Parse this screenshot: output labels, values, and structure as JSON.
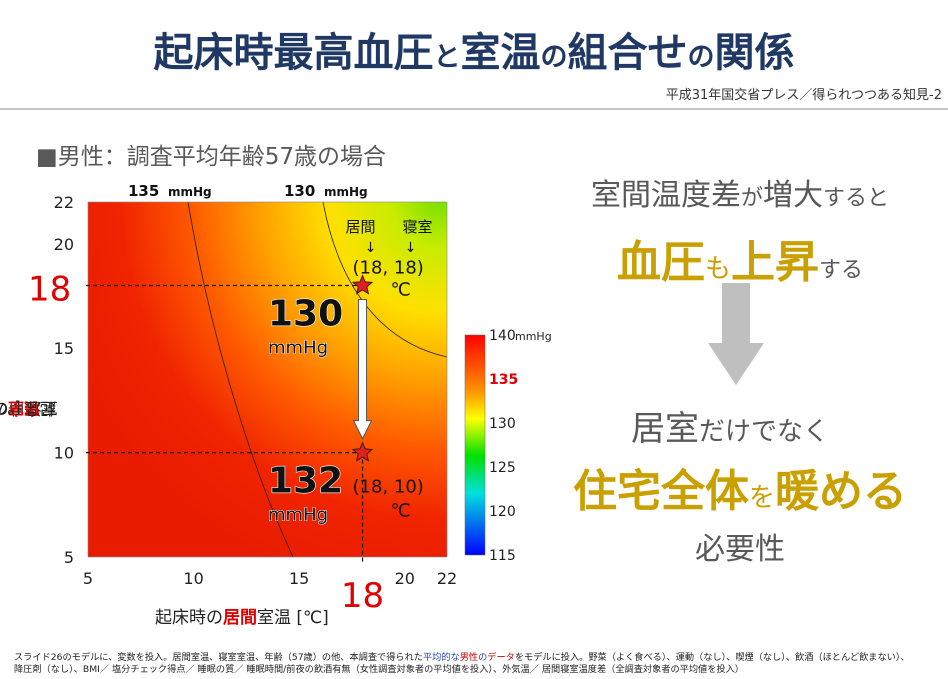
{
  "title": {
    "part1": "起床時最高血圧",
    "part2": "と",
    "part3": "室温",
    "part4": "の",
    "part5": "組合せ",
    "part6": "の",
    "part7": "関係"
  },
  "source": "平成31年国交省プレス／得られつつある知見-2",
  "subtitle": "■男性：調査平均年齢57歳の場合",
  "chart_data": {
    "type": "heatmap",
    "x_range": [
      5,
      22
    ],
    "y_range": [
      5,
      22
    ],
    "x_ticks": [
      "5",
      "10",
      "15",
      "20",
      "22"
    ],
    "y_ticks": [
      "5",
      "10",
      "15",
      "20",
      "22"
    ],
    "xlabel": {
      "prefix": "起床時の",
      "highlight": "居間",
      "suffix": "室温 [℃]"
    },
    "ylabel": {
      "prefix": "起床時の",
      "highlight": "寝室",
      "suffix": "室温 [℃]"
    },
    "colorbar": {
      "min": 115,
      "max": 140,
      "ticks": [
        "140",
        "135",
        "130",
        "125",
        "120",
        "115"
      ],
      "unit": "mmHg",
      "highlight_tick": "135",
      "highlight_color": "#e00000"
    },
    "contours": [
      {
        "label": "135",
        "unit": "mmHg"
      },
      {
        "label": "130",
        "unit": "mmHg"
      }
    ],
    "points": [
      {
        "x": 18,
        "y": 18,
        "value": "130",
        "unit": "mmHg",
        "coords": "(18, 18)",
        "deg": "℃"
      },
      {
        "x": 18,
        "y": 10,
        "value": "132",
        "unit": "mmHg",
        "coords": "(18, 10)",
        "deg": "℃"
      }
    ],
    "room_labels": [
      {
        "label": "居間",
        "arrow": "↓"
      },
      {
        "label": "寝室",
        "arrow": "↓"
      }
    ],
    "highlight_x": "18",
    "highlight_y": "18",
    "highlight_color": "#e00000"
  },
  "right": {
    "line1a": "室間温度差",
    "line1b": "が",
    "line1c": "増大",
    "line1d": "すると",
    "line2a": "血圧",
    "line2b": "も",
    "line2c": "上昇",
    "line2d": "する",
    "line3a": "居室",
    "line3b": "だけでなく",
    "line4a": "住宅全体",
    "line4b": "を",
    "line4c": "暖める",
    "line5": "必要性"
  },
  "footnote": {
    "a": "スライド26のモデルに、変数を投入。居間室温、寝室室温、年齢（57歳）の他、本調査で得られた",
    "b": "平均的な",
    "c": "男性",
    "d": "の",
    "e": "データ",
    "f": "をモデルに投入。野菜（よく食べる）、運動（なし）、喫煙（なし）、飲酒（ほとんど飲まない）、",
    "g": "降圧剤（なし）、BMI／ 塩分チェック得点／ 睡眠の質／ 睡眠時間/前夜の飲酒有無（女性調査対象者の平均値を投入）、外気温／ 居間寝室温度差（全調査対象者の平均値を投入）"
  },
  "colors": {
    "title": "#1f3864",
    "accent_gold": "#c9a000",
    "red": "#e00000",
    "gray_text": "#595959"
  }
}
